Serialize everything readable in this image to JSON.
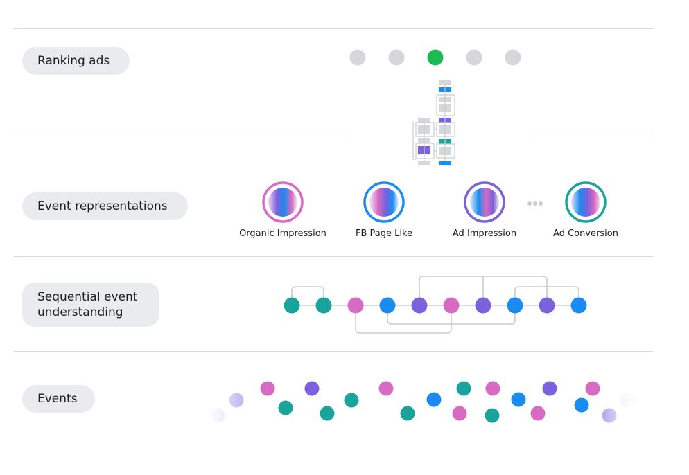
{
  "stages": {
    "ranking": {
      "label": "Ranking ads"
    },
    "representations": {
      "label": "Event representations"
    },
    "sequential": {
      "label": "Sequential event\nunderstanding"
    },
    "events": {
      "label": "Events"
    }
  },
  "ranking_indicators": {
    "selected": 2,
    "count": 5
  },
  "event_types": [
    {
      "label": "Organic Impression",
      "color": "#d66bc1"
    },
    {
      "label": "FB Page Like",
      "color": "#1a8cf0"
    },
    {
      "label": "Ad Impression",
      "color": "#7b61dc"
    },
    {
      "label": "Ad Conversion",
      "color": "#1aa39b"
    }
  ],
  "colors": {
    "teal": "#1aa39b",
    "pink": "#d66bc1",
    "blue": "#1a8cf0",
    "purple": "#7b61dc",
    "green": "#1db954",
    "gray_dot": "#d5d7da",
    "line": "#c9ccd1"
  }
}
